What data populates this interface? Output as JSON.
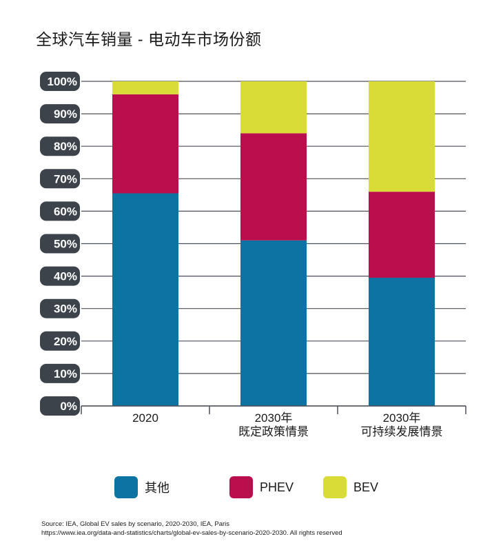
{
  "title": "全球汽车销量 - 电动车市场份额",
  "chart_data": {
    "type": "bar",
    "stacked": true,
    "categories": [
      [
        "2020"
      ],
      [
        "2030年",
        "既定政策情景"
      ],
      [
        "2030年",
        "可持续发展情景"
      ]
    ],
    "series": [
      {
        "name": "其他",
        "values": [
          65.5,
          51,
          39.5
        ],
        "color": "#0d73a3"
      },
      {
        "name": "PHEV",
        "values": [
          30.5,
          33,
          26.5
        ],
        "color": "#bb0e4d"
      },
      {
        "name": "BEV",
        "values": [
          4,
          16,
          34
        ],
        "color": "#d9dc37"
      }
    ],
    "y_ticks": [
      "0%",
      "10%",
      "20%",
      "30%",
      "40%",
      "50%",
      "60%",
      "70%",
      "80%",
      "90%",
      "100%"
    ],
    "ylim": [
      0,
      100
    ],
    "grid": true,
    "legend_position": "bottom"
  },
  "legend": [
    {
      "label": "其他",
      "color": "#0d73a3"
    },
    {
      "label": "PHEV",
      "color": "#bb0e4d"
    },
    {
      "label": "BEV",
      "color": "#d9dc37"
    }
  ],
  "source": {
    "line1": "Source: IEA, Global EV sales by scenario, 2020-2030, IEA, Paris",
    "line2": "https://www.iea.org/data-and-statistics/charts/global-ev-sales-by-scenario-2020-2030. All rights reserved"
  }
}
